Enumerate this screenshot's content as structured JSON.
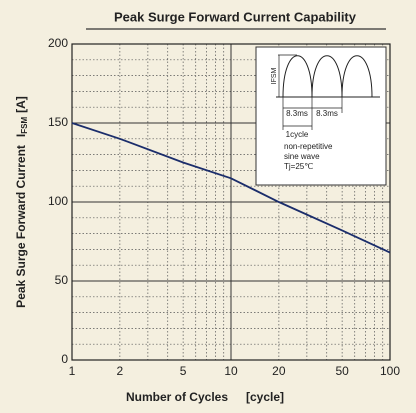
{
  "chart_data": {
    "type": "line",
    "title": "Peak Surge Forward Current Capability",
    "xlabel": "Number of Cycles",
    "xlabel_unit": "[cycle]",
    "ylabel": "Peak Surge Forward Current",
    "ylabel_symbol": "I",
    "ylabel_sub": "FSM",
    "ylabel_unit": "[A]",
    "x": [
      1,
      2,
      5,
      10,
      20,
      50,
      100
    ],
    "series": [
      {
        "color": "#1b2d6b",
        "values": [
          150,
          140,
          125,
          115,
          100,
          82,
          68
        ]
      }
    ],
    "xscale": "log",
    "xlim": [
      1,
      100
    ],
    "xticks": [
      1,
      2,
      5,
      10,
      20,
      50,
      100
    ],
    "xmajor": [
      1,
      10,
      100
    ],
    "xminor": [
      2,
      3,
      4,
      5,
      6,
      7,
      8,
      9,
      20,
      30,
      40,
      50,
      60,
      70,
      80,
      90
    ],
    "ylim": [
      0,
      200
    ],
    "yticks": [
      0,
      50,
      100,
      150,
      200
    ],
    "yminor": [
      10,
      20,
      30,
      40,
      60,
      70,
      80,
      90,
      110,
      120,
      130,
      140,
      160,
      170,
      180,
      190
    ],
    "grid": true,
    "inset": {
      "ifsm": "IFSM",
      "period1": "8.3ms",
      "period2": "8.3ms",
      "cycle": "1cycle",
      "note1": "non-repetitive",
      "note2": "sine wave",
      "note3": "Tj=25℃"
    }
  }
}
